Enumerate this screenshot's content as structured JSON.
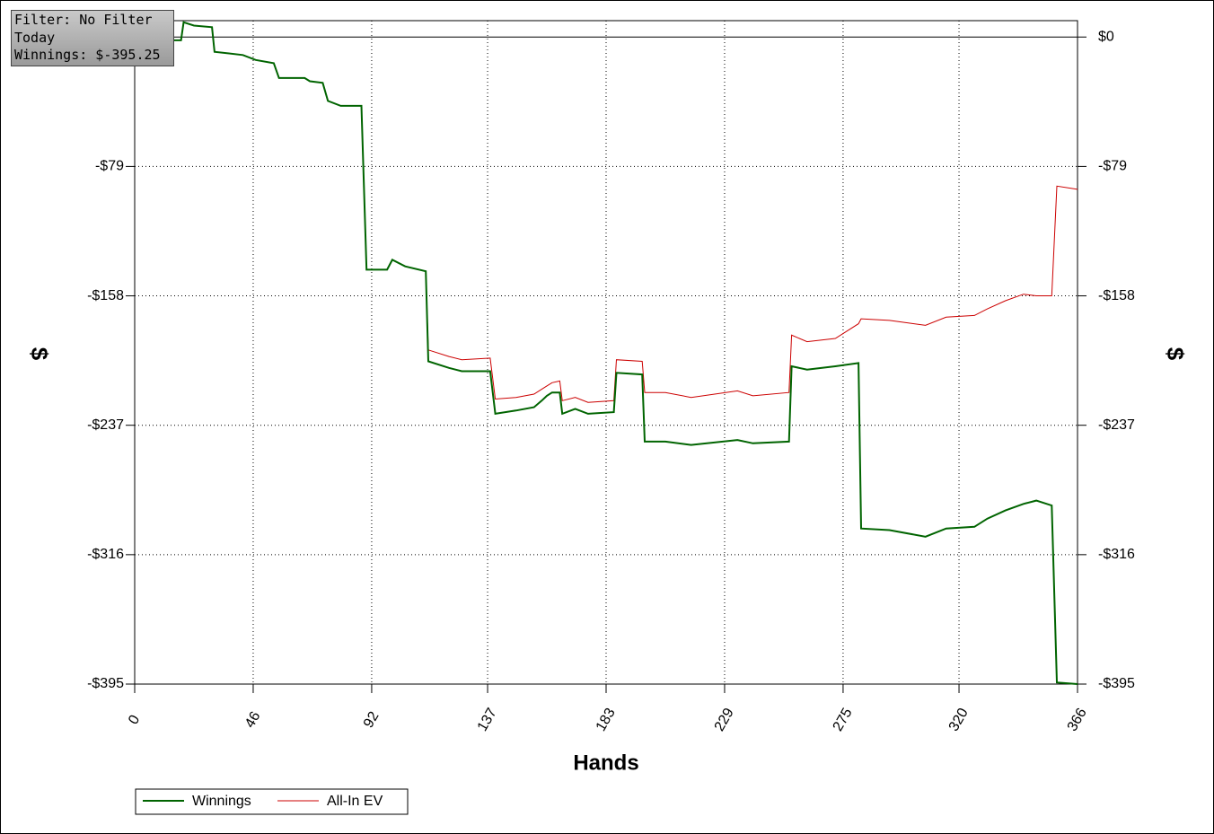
{
  "chart_data": {
    "type": "line",
    "annotations": [
      "Filter: No Filter",
      "Today",
      "Winnings: $-395.25"
    ],
    "x_label": "Hands",
    "y_label": "$",
    "x": [
      0,
      13,
      18,
      19,
      23,
      30,
      31,
      42,
      47,
      54,
      56,
      66,
      68,
      73,
      75,
      80,
      84,
      88,
      90,
      98,
      100,
      105,
      113,
      114,
      122,
      127,
      138,
      140,
      148,
      155,
      158,
      160,
      162,
      165,
      166,
      171,
      176,
      186,
      187,
      197,
      198,
      206,
      216,
      234,
      240,
      254,
      255,
      261,
      272,
      281,
      282,
      293,
      307,
      315,
      326,
      331,
      338,
      345,
      350,
      356,
      358,
      366
    ],
    "series": [
      {
        "name": "Winnings",
        "color": "#006400",
        "values": [
          -1,
          -2,
          -2,
          9,
          7,
          6,
          -9,
          -11,
          -14,
          -16,
          -25,
          -25,
          -27,
          -28,
          -39,
          -42,
          -42,
          -42,
          -142,
          -142,
          -136,
          -140,
          -143,
          -198,
          -202,
          -204,
          -204,
          -230,
          -228,
          -226,
          -222,
          -219,
          -217,
          -217,
          -230,
          -227,
          -230,
          -229,
          -205,
          -206,
          -247,
          -247,
          -249,
          -246,
          -248,
          -247,
          -201,
          -203,
          -201,
          -199,
          -300,
          -301,
          -305,
          -300,
          -299,
          -294,
          -289,
          -285,
          -283,
          -286,
          -394,
          -395
        ]
      },
      {
        "name": "All-In EV",
        "color": "#cc0000",
        "values": [
          -1,
          -2,
          -2,
          9,
          7,
          6,
          -9,
          -11,
          -14,
          -16,
          -25,
          -25,
          -27,
          -28,
          -39,
          -42,
          -42,
          -42,
          -142,
          -142,
          -136,
          -140,
          -143,
          -191,
          -195,
          -197,
          -196,
          -221,
          -220,
          -218,
          -215,
          -213,
          -211,
          -210,
          -222,
          -220,
          -223,
          -222,
          -197,
          -198,
          -217,
          -217,
          -220,
          -216,
          -219,
          -217,
          -182,
          -186,
          -184,
          -175,
          -172,
          -173,
          -176,
          -171,
          -170,
          -166,
          -161,
          -157,
          -158,
          -158,
          -91,
          -93
        ]
      }
    ],
    "xlim": [
      0,
      366
    ],
    "xticks": [
      0,
      46,
      92,
      137,
      183,
      229,
      275,
      320,
      366
    ],
    "ylim": [
      -395,
      10
    ],
    "yticks": [
      {
        "value": 0,
        "label": "$0"
      },
      {
        "value": -79,
        "label": "-$79"
      },
      {
        "value": -158,
        "label": "-$158"
      },
      {
        "value": -237,
        "label": "-$237"
      },
      {
        "value": -316,
        "label": "-$316"
      },
      {
        "value": -395,
        "label": "-$395"
      }
    ],
    "grid": true,
    "legend": "bottom-left"
  }
}
